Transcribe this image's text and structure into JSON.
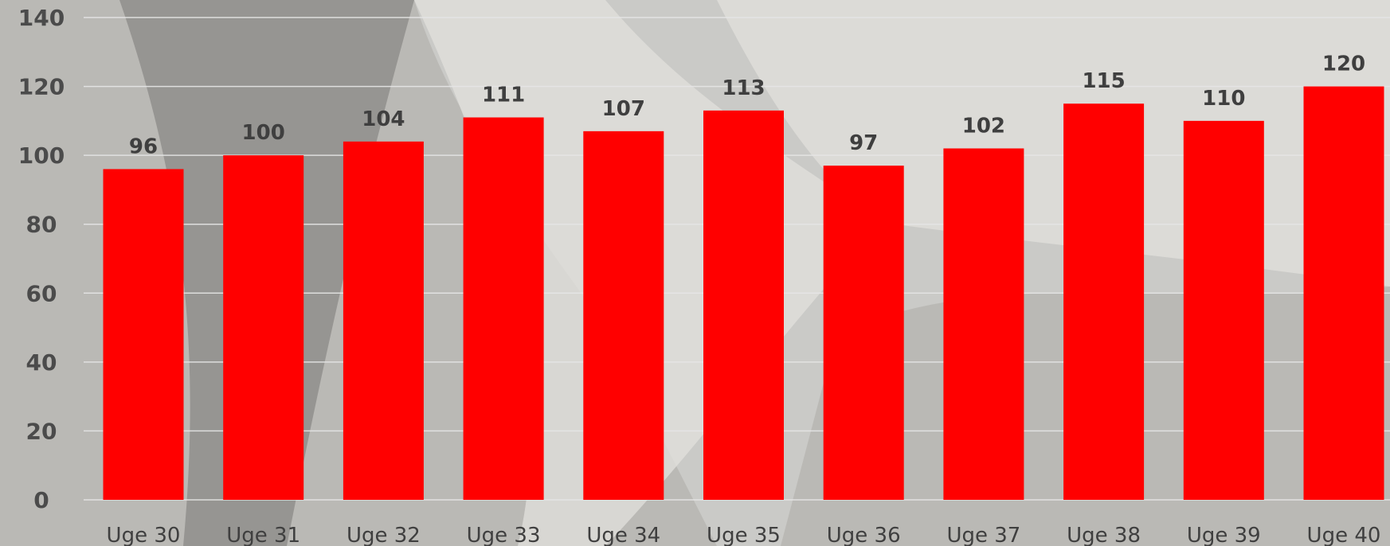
{
  "chart_data": {
    "type": "bar",
    "title": "",
    "xlabel": "",
    "ylabel": "",
    "categories": [
      "Uge 30",
      "Uge 31",
      "Uge 32",
      "Uge 33",
      "Uge 34",
      "Uge 35",
      "Uge 36",
      "Uge 37",
      "Uge 38",
      "Uge 39",
      "Uge 40"
    ],
    "values": [
      96,
      100,
      104,
      111,
      107,
      113,
      97,
      102,
      115,
      110,
      120
    ],
    "ylim": [
      0,
      140
    ],
    "yticks": [
      0,
      20,
      40,
      60,
      80,
      100,
      120,
      140
    ],
    "grid": true,
    "data_labels": true,
    "bar_color": "#ff0000",
    "background": "photo"
  }
}
